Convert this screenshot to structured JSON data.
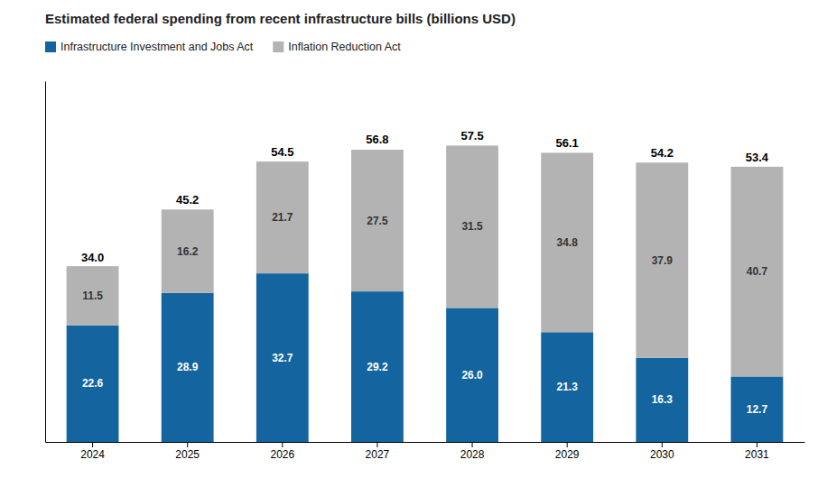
{
  "chart_data": {
    "type": "bar",
    "title": "Estimated federal spending from recent infrastructure bills (billions USD)",
    "categories": [
      "2024",
      "2025",
      "2026",
      "2027",
      "2028",
      "2029",
      "2030",
      "2031"
    ],
    "series": [
      {
        "name": "Infrastructure Investment and Jobs Act",
        "color": "#1464a0",
        "values": [
          22.6,
          28.9,
          32.7,
          29.2,
          26.0,
          21.3,
          16.3,
          12.7
        ],
        "value_labels": [
          "22.6",
          "28.9",
          "32.7",
          "29.2",
          "26.0",
          "21.3",
          "16.3",
          "12.7"
        ]
      },
      {
        "name": "Inflation Reduction Act",
        "color": "#b3b3b3",
        "values": [
          11.5,
          16.2,
          21.7,
          27.5,
          31.5,
          34.8,
          37.9,
          40.7
        ]
      }
    ],
    "totals": [
      34.0,
      45.2,
      54.5,
      56.8,
      57.5,
      56.1,
      54.2,
      53.4
    ],
    "total_labels": [
      "34.0",
      "45.2",
      "54.5",
      "56.8",
      "57.5",
      "56.1",
      "54.2",
      "53.4"
    ],
    "stacked": true,
    "data_labels": true,
    "tick_labels": "x",
    "legend": "upper left",
    "ylim": [
      0,
      70
    ]
  }
}
